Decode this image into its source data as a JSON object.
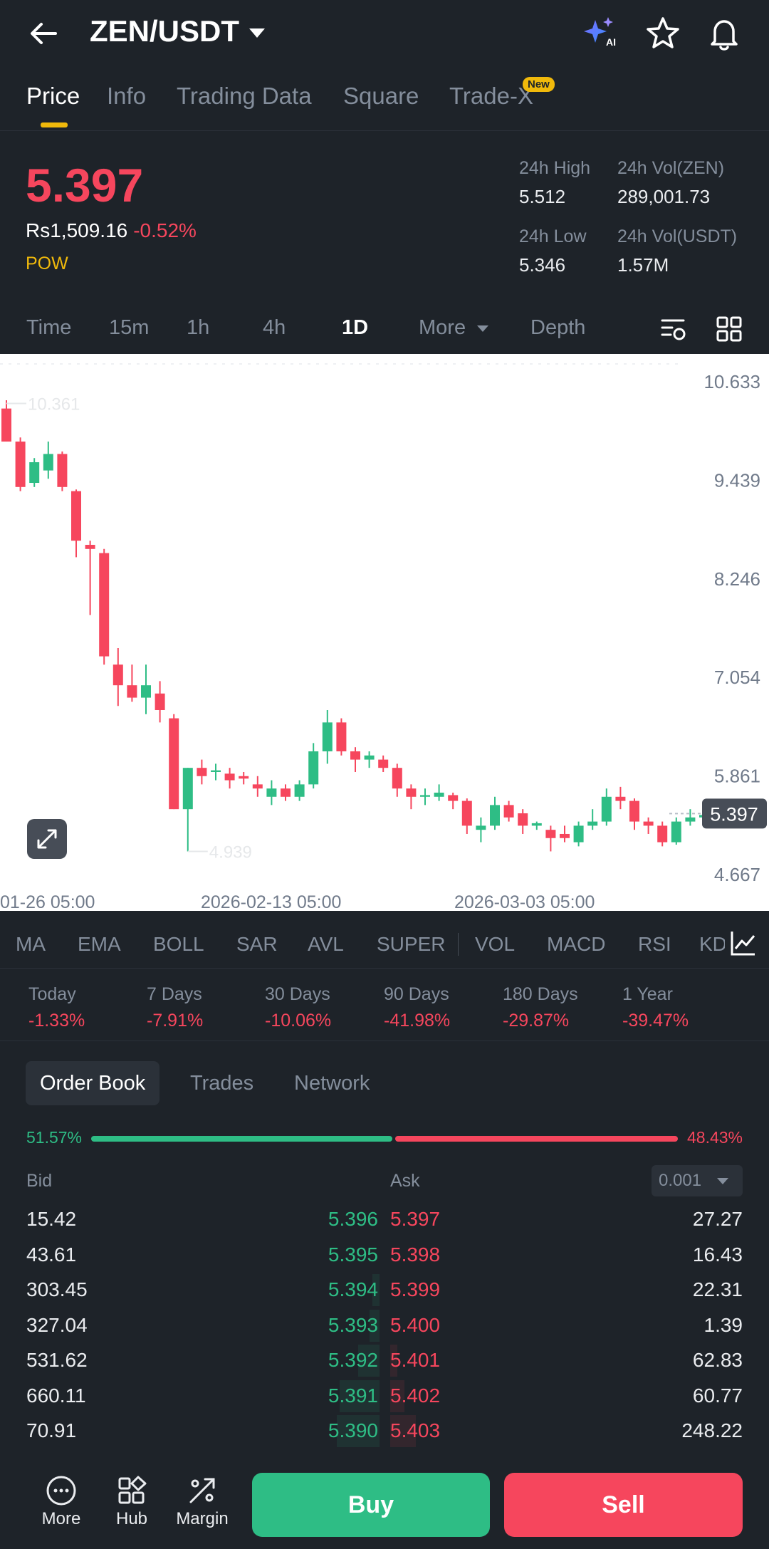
{
  "header": {
    "pair": "ZEN/USDT",
    "icons": [
      "back-arrow-icon",
      "ai-sparkle-icon",
      "star-icon",
      "bell-icon"
    ],
    "ai_label": "AI"
  },
  "tabs": [
    {
      "label": "Price",
      "active": true
    },
    {
      "label": "Info"
    },
    {
      "label": "Trading Data"
    },
    {
      "label": "Square"
    },
    {
      "label": "Trade-X",
      "badge": "New"
    }
  ],
  "price": {
    "last": "5.397",
    "fiat": "Rs1,509.16",
    "change": "-0.52%",
    "tag": "POW"
  },
  "stats": {
    "high_label": "24h High",
    "high": "5.512",
    "vol_base_label": "24h Vol(ZEN)",
    "vol_base": "289,001.73",
    "low_label": "24h Low",
    "low": "5.346",
    "vol_quote_label": "24h Vol(USDT)",
    "vol_quote": "1.57M"
  },
  "intervals": {
    "items": [
      "Time",
      "15m",
      "1h",
      "4h",
      "1D",
      "More",
      "Depth"
    ],
    "active": "1D"
  },
  "chart_data": {
    "type": "candlestick",
    "y_ticks": [
      "10.633",
      "9.439",
      "8.246",
      "7.054",
      "5.861",
      "4.667"
    ],
    "ylim": [
      4.667,
      10.633
    ],
    "x_ticks": [
      "01-26 05:00",
      "2026-02-13 05:00",
      "2026-03-03 05:00"
    ],
    "max_label": "10.361",
    "min_label": "4.939",
    "current_price_label": "5.397",
    "colors": {
      "up": "#2ebd85",
      "down": "#f6465d"
    },
    "candles": [
      {
        "o": 10.3,
        "h": 10.4,
        "l": 9.9,
        "c": 9.9
      },
      {
        "o": 9.9,
        "h": 9.95,
        "l": 9.3,
        "c": 9.35
      },
      {
        "o": 9.4,
        "h": 9.7,
        "l": 9.35,
        "c": 9.65
      },
      {
        "o": 9.55,
        "h": 9.9,
        "l": 9.45,
        "c": 9.75
      },
      {
        "o": 9.75,
        "h": 9.78,
        "l": 9.3,
        "c": 9.35
      },
      {
        "o": 9.3,
        "h": 9.32,
        "l": 8.5,
        "c": 8.7
      },
      {
        "o": 8.65,
        "h": 8.7,
        "l": 7.8,
        "c": 8.6
      },
      {
        "o": 8.55,
        "h": 8.6,
        "l": 7.2,
        "c": 7.3
      },
      {
        "o": 7.2,
        "h": 7.4,
        "l": 6.7,
        "c": 6.95
      },
      {
        "o": 6.95,
        "h": 7.2,
        "l": 6.75,
        "c": 6.8
      },
      {
        "o": 6.8,
        "h": 7.2,
        "l": 6.6,
        "c": 6.95
      },
      {
        "o": 6.85,
        "h": 7.0,
        "l": 6.5,
        "c": 6.65
      },
      {
        "o": 6.55,
        "h": 6.6,
        "l": 5.45,
        "c": 5.45
      },
      {
        "o": 5.45,
        "h": 5.95,
        "l": 4.939,
        "c": 5.95
      },
      {
        "o": 5.95,
        "h": 6.05,
        "l": 5.75,
        "c": 5.85
      },
      {
        "o": 5.9,
        "h": 6.0,
        "l": 5.8,
        "c": 5.92
      },
      {
        "o": 5.88,
        "h": 5.95,
        "l": 5.7,
        "c": 5.8
      },
      {
        "o": 5.85,
        "h": 5.9,
        "l": 5.75,
        "c": 5.82
      },
      {
        "o": 5.75,
        "h": 5.85,
        "l": 5.6,
        "c": 5.7
      },
      {
        "o": 5.6,
        "h": 5.8,
        "l": 5.5,
        "c": 5.7
      },
      {
        "o": 5.7,
        "h": 5.75,
        "l": 5.55,
        "c": 5.6
      },
      {
        "o": 5.6,
        "h": 5.8,
        "l": 5.55,
        "c": 5.75
      },
      {
        "o": 5.75,
        "h": 6.25,
        "l": 5.7,
        "c": 6.15
      },
      {
        "o": 6.15,
        "h": 6.65,
        "l": 6.0,
        "c": 6.5
      },
      {
        "o": 6.5,
        "h": 6.55,
        "l": 6.1,
        "c": 6.15
      },
      {
        "o": 6.15,
        "h": 6.2,
        "l": 5.9,
        "c": 6.05
      },
      {
        "o": 6.05,
        "h": 6.15,
        "l": 5.95,
        "c": 6.1
      },
      {
        "o": 6.05,
        "h": 6.1,
        "l": 5.9,
        "c": 5.95
      },
      {
        "o": 5.95,
        "h": 6.0,
        "l": 5.6,
        "c": 5.7
      },
      {
        "o": 5.7,
        "h": 5.75,
        "l": 5.45,
        "c": 5.6
      },
      {
        "o": 5.6,
        "h": 5.7,
        "l": 5.5,
        "c": 5.62
      },
      {
        "o": 5.6,
        "h": 5.75,
        "l": 5.55,
        "c": 5.65
      },
      {
        "o": 5.62,
        "h": 5.65,
        "l": 5.45,
        "c": 5.55
      },
      {
        "o": 5.55,
        "h": 5.58,
        "l": 5.15,
        "c": 5.25
      },
      {
        "o": 5.2,
        "h": 5.35,
        "l": 5.05,
        "c": 5.25
      },
      {
        "o": 5.25,
        "h": 5.6,
        "l": 5.2,
        "c": 5.5
      },
      {
        "o": 5.5,
        "h": 5.55,
        "l": 5.3,
        "c": 5.35
      },
      {
        "o": 5.4,
        "h": 5.45,
        "l": 5.15,
        "c": 5.25
      },
      {
        "o": 5.25,
        "h": 5.3,
        "l": 5.2,
        "c": 5.28
      },
      {
        "o": 5.2,
        "h": 5.25,
        "l": 4.939,
        "c": 5.1
      },
      {
        "o": 5.15,
        "h": 5.25,
        "l": 5.05,
        "c": 5.1
      },
      {
        "o": 5.05,
        "h": 5.3,
        "l": 5.0,
        "c": 5.25
      },
      {
        "o": 5.25,
        "h": 5.45,
        "l": 5.2,
        "c": 5.3
      },
      {
        "o": 5.3,
        "h": 5.7,
        "l": 5.25,
        "c": 5.6
      },
      {
        "o": 5.6,
        "h": 5.72,
        "l": 5.45,
        "c": 5.55
      },
      {
        "o": 5.55,
        "h": 5.58,
        "l": 5.2,
        "c": 5.3
      },
      {
        "o": 5.3,
        "h": 5.35,
        "l": 5.15,
        "c": 5.25
      },
      {
        "o": 5.25,
        "h": 5.3,
        "l": 5.0,
        "c": 5.05
      },
      {
        "o": 5.05,
        "h": 5.35,
        "l": 5.02,
        "c": 5.3
      },
      {
        "o": 5.3,
        "h": 5.45,
        "l": 5.25,
        "c": 5.35
      },
      {
        "o": 5.35,
        "h": 5.42,
        "l": 5.28,
        "c": 5.38
      },
      {
        "o": 5.4,
        "h": 5.42,
        "l": 5.35,
        "c": 5.397
      }
    ]
  },
  "indicators": [
    "MA",
    "EMA",
    "BOLL",
    "SAR",
    "AVL",
    "SUPER",
    "VOL",
    "MACD",
    "RSI",
    "KD"
  ],
  "performance": [
    {
      "label": "Today",
      "value": "-1.33%"
    },
    {
      "label": "7 Days",
      "value": "-7.91%"
    },
    {
      "label": "30 Days",
      "value": "-10.06%"
    },
    {
      "label": "90 Days",
      "value": "-41.98%"
    },
    {
      "label": "180 Days",
      "value": "-29.87%"
    },
    {
      "label": "1 Year",
      "value": "-39.47%"
    }
  ],
  "orderbook": {
    "tabs": [
      "Order Book",
      "Trades",
      "Network"
    ],
    "bid_pct": "51.57%",
    "ask_pct": "48.43%",
    "bid_ratio": 0.5157,
    "bid_label": "Bid",
    "ask_label": "Ask",
    "precision": "0.001",
    "rows": [
      {
        "bid_qty": "15.42",
        "bid_price": "5.396",
        "ask_price": "5.397",
        "ask_qty": "27.27"
      },
      {
        "bid_qty": "43.61",
        "bid_price": "5.395",
        "ask_price": "5.398",
        "ask_qty": "16.43"
      },
      {
        "bid_qty": "303.45",
        "bid_price": "5.394",
        "ask_price": "5.399",
        "ask_qty": "22.31"
      },
      {
        "bid_qty": "327.04",
        "bid_price": "5.393",
        "ask_price": "5.400",
        "ask_qty": "1.39"
      },
      {
        "bid_qty": "531.62",
        "bid_price": "5.392",
        "ask_price": "5.401",
        "ask_qty": "62.83"
      },
      {
        "bid_qty": "660.11",
        "bid_price": "5.391",
        "ask_price": "5.402",
        "ask_qty": "60.77"
      },
      {
        "bid_qty": "70.91",
        "bid_price": "5.390",
        "ask_price": "5.403",
        "ask_qty": "248.22"
      }
    ]
  },
  "bottom": {
    "nav": [
      {
        "label": "More",
        "icon": "more-dots-icon"
      },
      {
        "label": "Hub",
        "icon": "hub-grid-icon"
      },
      {
        "label": "Margin",
        "icon": "margin-icon"
      }
    ],
    "buy": "Buy",
    "sell": "Sell"
  }
}
